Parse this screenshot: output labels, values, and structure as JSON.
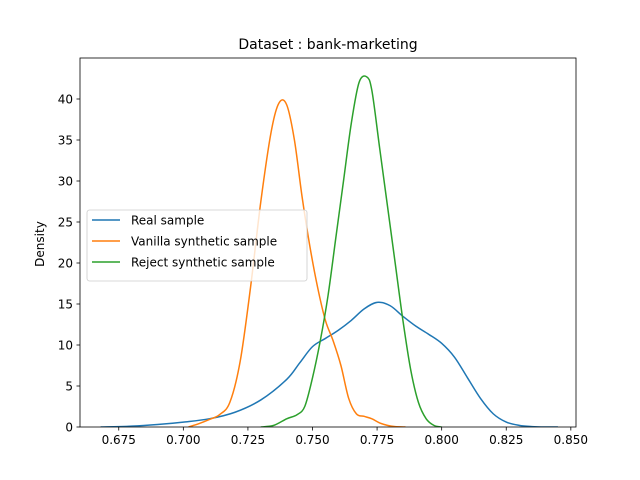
{
  "chart_data": {
    "type": "line",
    "title": "Dataset : bank-marketing",
    "xlabel": "",
    "ylabel": "Density",
    "xlim": [
      0.66,
      0.852
    ],
    "ylim": [
      0,
      45
    ],
    "x_ticks": [
      0.675,
      0.7,
      0.725,
      0.75,
      0.775,
      0.8,
      0.825,
      0.85
    ],
    "x_tick_labels": [
      "0.675",
      "0.700",
      "0.725",
      "0.750",
      "0.775",
      "0.800",
      "0.825",
      "0.850"
    ],
    "y_ticks": [
      0,
      5,
      10,
      15,
      20,
      25,
      30,
      35,
      40
    ],
    "y_tick_labels": [
      "0",
      "5",
      "10",
      "15",
      "20",
      "25",
      "30",
      "35",
      "40"
    ],
    "grid": false,
    "legend_position": "center-left",
    "series": [
      {
        "name": "Real sample",
        "color": "#1f77b4",
        "x": [
          0.668,
          0.68,
          0.69,
          0.7,
          0.71,
          0.72,
          0.73,
          0.74,
          0.745,
          0.75,
          0.755,
          0.76,
          0.765,
          0.77,
          0.775,
          0.78,
          0.785,
          0.79,
          0.795,
          0.8,
          0.805,
          0.81,
          0.815,
          0.82,
          0.825,
          0.83,
          0.835,
          0.84,
          0.845
        ],
        "y": [
          0.0,
          0.1,
          0.3,
          0.6,
          1.0,
          1.8,
          3.3,
          5.8,
          7.8,
          9.8,
          10.8,
          11.8,
          13.0,
          14.4,
          15.2,
          14.8,
          13.5,
          12.3,
          11.3,
          10.2,
          8.5,
          6.0,
          3.5,
          1.6,
          0.6,
          0.2,
          0.05,
          0.0,
          0.0
        ]
      },
      {
        "name": "Vanilla synthetic sample",
        "color": "#ff7f0e",
        "x": [
          0.702,
          0.706,
          0.71,
          0.714,
          0.718,
          0.722,
          0.726,
          0.73,
          0.734,
          0.737,
          0.74,
          0.743,
          0.746,
          0.749,
          0.752,
          0.755,
          0.758,
          0.761,
          0.764,
          0.767,
          0.77,
          0.773,
          0.776,
          0.779,
          0.782,
          0.786
        ],
        "y": [
          0.0,
          0.4,
          0.9,
          1.5,
          3.0,
          8.0,
          17.0,
          27.5,
          36.0,
          39.5,
          39.3,
          35.0,
          28.0,
          22.0,
          17.0,
          13.0,
          10.5,
          7.5,
          3.5,
          1.6,
          1.3,
          1.0,
          0.5,
          0.2,
          0.05,
          0.0
        ]
      },
      {
        "name": "Reject synthetic sample",
        "color": "#2ca02c",
        "x": [
          0.73,
          0.735,
          0.74,
          0.744,
          0.747,
          0.75,
          0.753,
          0.756,
          0.759,
          0.762,
          0.765,
          0.768,
          0.771,
          0.773,
          0.776,
          0.779,
          0.782,
          0.785,
          0.788,
          0.791,
          0.794,
          0.797,
          0.8
        ],
        "y": [
          0.0,
          0.2,
          1.0,
          1.5,
          2.5,
          6.0,
          10.5,
          16.0,
          23.0,
          30.0,
          37.0,
          42.0,
          42.7,
          41.0,
          34.0,
          27.0,
          20.0,
          13.0,
          7.0,
          3.0,
          1.0,
          0.2,
          0.0
        ]
      }
    ]
  }
}
